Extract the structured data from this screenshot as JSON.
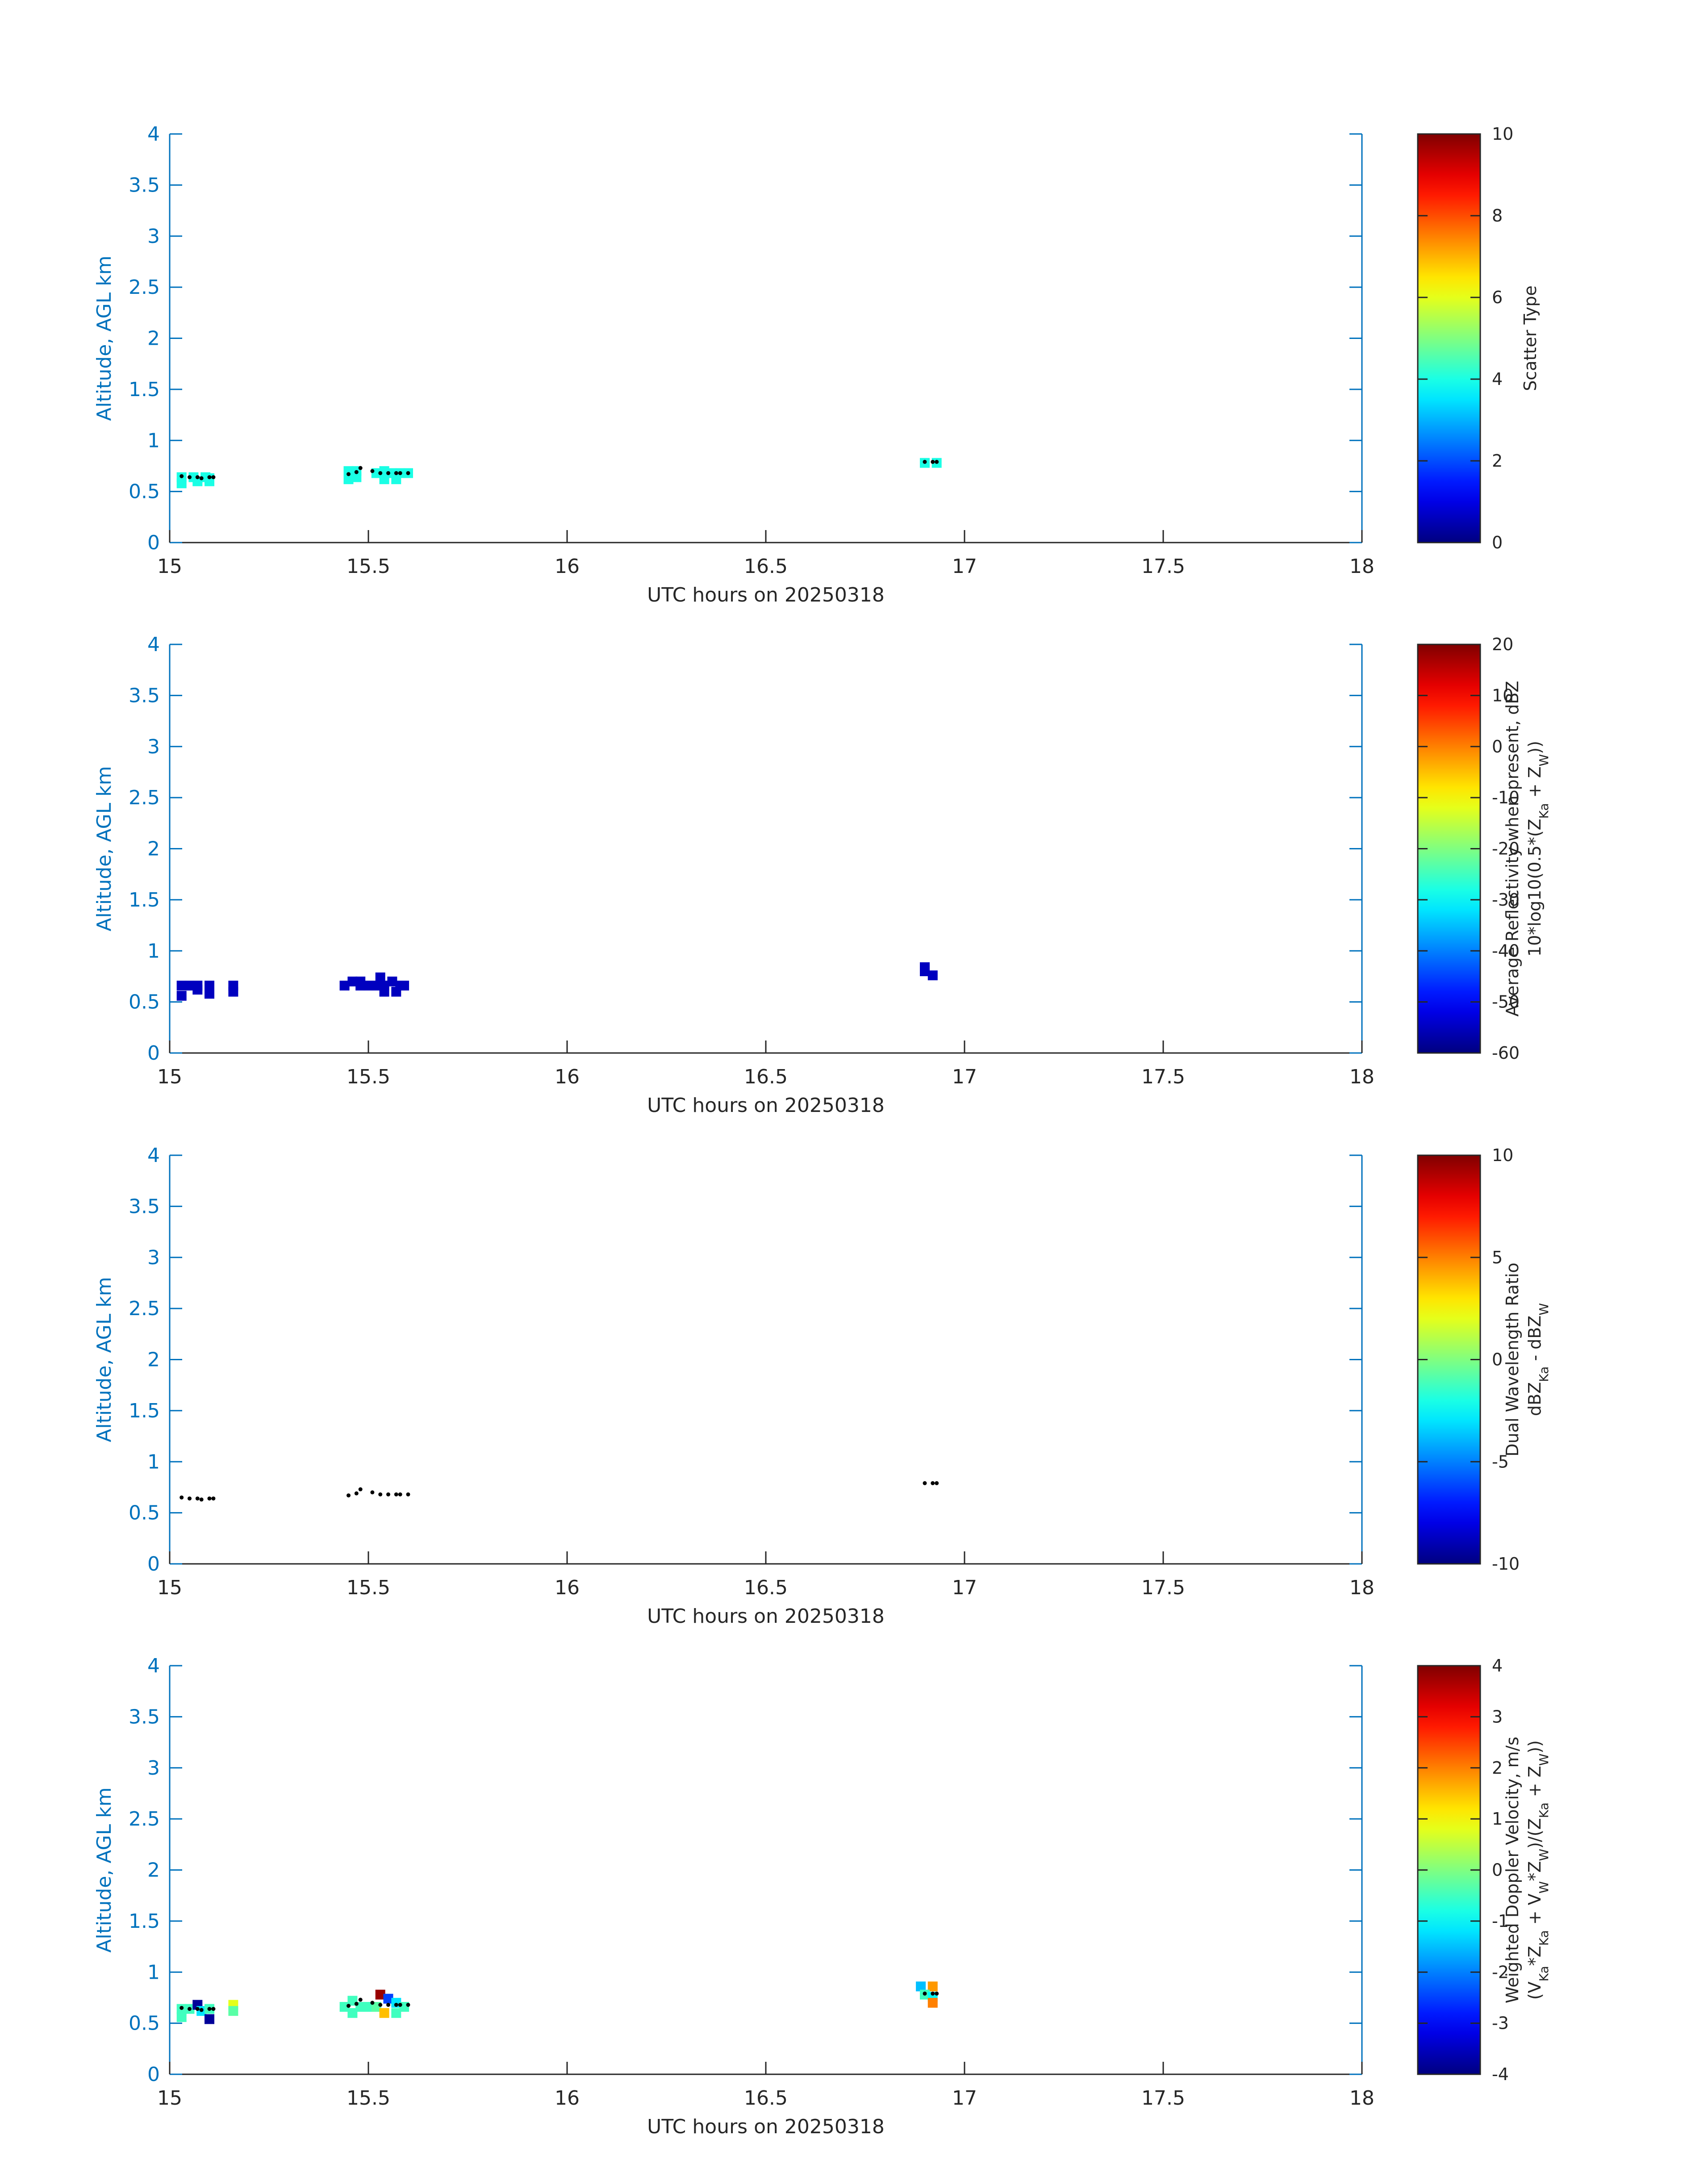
{
  "colors": {
    "axis": "#0072BD",
    "text": "#262626",
    "marker": "#000000",
    "colormap": "jet"
  },
  "chart_data": [
    {
      "type": "heatmap",
      "xlabel": "UTC hours on 20250318",
      "ylabel": "Altitude, AGL km",
      "xlim": [
        15,
        18
      ],
      "ylim": [
        0,
        4
      ],
      "xticks": [
        "15",
        "15.5",
        "16",
        "16.5",
        "17",
        "17.5",
        "18"
      ],
      "yticks": [
        "0",
        "0.5",
        "1",
        "1.5",
        "2",
        "2.5",
        "3",
        "3.5",
        "4"
      ],
      "grid": false,
      "colorbar": {
        "label_lines": [
          {
            "text": "Scatter Type"
          }
        ],
        "ticks": [
          "0",
          "2",
          "4",
          "6",
          "8",
          "10"
        ],
        "clim": [
          0,
          10
        ]
      },
      "cells": [
        [
          15.03,
          0.64,
          4
        ],
        [
          15.06,
          0.64,
          4
        ],
        [
          15.09,
          0.64,
          4
        ],
        [
          15.1,
          0.63,
          4
        ],
        [
          15.03,
          0.58,
          4
        ],
        [
          15.07,
          0.6,
          4
        ],
        [
          15.1,
          0.6,
          4
        ],
        [
          15.45,
          0.7,
          4
        ],
        [
          15.47,
          0.7,
          4
        ],
        [
          15.45,
          0.62,
          4
        ],
        [
          15.47,
          0.64,
          4
        ],
        [
          15.52,
          0.68,
          4
        ],
        [
          15.54,
          0.7,
          4
        ],
        [
          15.56,
          0.68,
          4
        ],
        [
          15.58,
          0.68,
          4
        ],
        [
          15.6,
          0.68,
          4
        ],
        [
          15.54,
          0.62,
          4
        ],
        [
          15.57,
          0.62,
          4
        ],
        [
          16.9,
          0.78,
          4
        ],
        [
          16.93,
          0.78,
          4
        ]
      ],
      "markers": [
        [
          15.03,
          0.65
        ],
        [
          15.05,
          0.64
        ],
        [
          15.07,
          0.64
        ],
        [
          15.08,
          0.63
        ],
        [
          15.1,
          0.64
        ],
        [
          15.11,
          0.64
        ],
        [
          15.45,
          0.67
        ],
        [
          15.47,
          0.69
        ],
        [
          15.48,
          0.73
        ],
        [
          15.51,
          0.7
        ],
        [
          15.53,
          0.68
        ],
        [
          15.55,
          0.68
        ],
        [
          15.57,
          0.68
        ],
        [
          15.58,
          0.68
        ],
        [
          15.6,
          0.68
        ],
        [
          16.9,
          0.79
        ],
        [
          16.92,
          0.79
        ],
        [
          16.93,
          0.79
        ]
      ]
    },
    {
      "type": "heatmap",
      "xlabel": "UTC hours on 20250318",
      "ylabel": "Altitude, AGL km",
      "xlim": [
        15,
        18
      ],
      "ylim": [
        0,
        4
      ],
      "xticks": [
        "15",
        "15.5",
        "16",
        "16.5",
        "17",
        "17.5",
        "18"
      ],
      "yticks": [
        "0",
        "0.5",
        "1",
        "1.5",
        "2",
        "2.5",
        "3",
        "3.5",
        "4"
      ],
      "grid": false,
      "colorbar": {
        "label_lines": [
          {
            "text": "Average Reflectivity when present, dBZ"
          },
          {
            "text": "10*log10(0.5*(Z",
            "sub1": "Ka",
            "mid": " + Z",
            "sub2": "W",
            "tail": "))"
          }
        ],
        "ticks": [
          "-60",
          "-50",
          "-40",
          "-30",
          "-20",
          "-10",
          "0",
          "10",
          "20"
        ],
        "clim": [
          -60,
          20
        ]
      },
      "cells": [
        [
          15.03,
          0.66,
          -55
        ],
        [
          15.05,
          0.66,
          -55
        ],
        [
          15.07,
          0.62,
          -55
        ],
        [
          15.1,
          0.66,
          -55
        ],
        [
          15.1,
          0.58,
          -55
        ],
        [
          15.03,
          0.56,
          -55
        ],
        [
          15.07,
          0.66,
          -55
        ],
        [
          15.16,
          0.66,
          -55
        ],
        [
          15.16,
          0.6,
          -55
        ],
        [
          15.44,
          0.66,
          -55
        ],
        [
          15.46,
          0.7,
          -55
        ],
        [
          15.48,
          0.7,
          -55
        ],
        [
          15.48,
          0.66,
          -55
        ],
        [
          15.5,
          0.66,
          -55
        ],
        [
          15.52,
          0.66,
          -55
        ],
        [
          15.53,
          0.74,
          -55
        ],
        [
          15.54,
          0.66,
          -55
        ],
        [
          15.56,
          0.7,
          -55
        ],
        [
          15.58,
          0.66,
          -55
        ],
        [
          15.54,
          0.6,
          -55
        ],
        [
          15.57,
          0.6,
          -55
        ],
        [
          15.59,
          0.66,
          -55
        ],
        [
          16.9,
          0.8,
          -55
        ],
        [
          16.92,
          0.76,
          -55
        ],
        [
          16.9,
          0.84,
          -55
        ]
      ],
      "markers": []
    },
    {
      "type": "heatmap",
      "xlabel": "UTC hours on 20250318",
      "ylabel": "Altitude, AGL km",
      "xlim": [
        15,
        18
      ],
      "ylim": [
        0,
        4
      ],
      "xticks": [
        "15",
        "15.5",
        "16",
        "16.5",
        "17",
        "17.5",
        "18"
      ],
      "yticks": [
        "0",
        "0.5",
        "1",
        "1.5",
        "2",
        "2.5",
        "3",
        "3.5",
        "4"
      ],
      "grid": false,
      "colorbar": {
        "label_lines": [
          {
            "text": "Dual Wavelength Ratio"
          },
          {
            "text": "dBZ",
            "sub1": "Ka",
            "mid": " - dBZ",
            "sub2": "W",
            "tail": ""
          }
        ],
        "ticks": [
          "-10",
          "-5",
          "0",
          "5",
          "10"
        ],
        "clim": [
          -10,
          10
        ]
      },
      "cells": [],
      "markers": [
        [
          15.03,
          0.65
        ],
        [
          15.05,
          0.64
        ],
        [
          15.07,
          0.64
        ],
        [
          15.08,
          0.63
        ],
        [
          15.1,
          0.64
        ],
        [
          15.11,
          0.64
        ],
        [
          15.45,
          0.67
        ],
        [
          15.47,
          0.69
        ],
        [
          15.48,
          0.73
        ],
        [
          15.51,
          0.7
        ],
        [
          15.53,
          0.68
        ],
        [
          15.55,
          0.68
        ],
        [
          15.57,
          0.68
        ],
        [
          15.58,
          0.68
        ],
        [
          15.6,
          0.68
        ],
        [
          16.9,
          0.79
        ],
        [
          16.92,
          0.79
        ],
        [
          16.93,
          0.79
        ]
      ]
    },
    {
      "type": "heatmap",
      "xlabel": "UTC hours on 20250318",
      "ylabel": "Altitude, AGL km",
      "xlim": [
        15,
        18
      ],
      "ylim": [
        0,
        4
      ],
      "xticks": [
        "15",
        "15.5",
        "16",
        "16.5",
        "17",
        "17.5",
        "18"
      ],
      "yticks": [
        "0",
        "0.5",
        "1",
        "1.5",
        "2",
        "2.5",
        "3",
        "3.5",
        "4"
      ],
      "grid": false,
      "colorbar": {
        "label_lines": [
          {
            "text": "Weighted Doppler Velocity, m/s"
          },
          {
            "text": "(V",
            "sub1": "Ka",
            "mid": "*Z",
            "sub2": "Ka",
            "tail": " + V",
            "sub3": "W",
            "tail2": "*Z",
            "sub4": "W",
            "tail3": ")/(Z",
            "sub5": "Ka",
            "tail4": " + Z",
            "sub6": "W",
            "tail5": "))"
          }
        ],
        "ticks": [
          "-4",
          "-3",
          "-2",
          "-1",
          "0",
          "1",
          "2",
          "3",
          "4"
        ],
        "clim": [
          -4,
          4
        ]
      },
      "cells": [
        [
          15.03,
          0.64,
          -0.5
        ],
        [
          15.05,
          0.64,
          -0.5
        ],
        [
          15.07,
          0.68,
          -3.8
        ],
        [
          15.08,
          0.62,
          -1.2
        ],
        [
          15.1,
          0.64,
          -0.5
        ],
        [
          15.1,
          0.54,
          -3.8
        ],
        [
          15.03,
          0.56,
          -0.5
        ],
        [
          15.16,
          0.68,
          0.8
        ],
        [
          15.16,
          0.62,
          -0.3
        ],
        [
          15.44,
          0.66,
          -0.5
        ],
        [
          15.46,
          0.72,
          -0.5
        ],
        [
          15.48,
          0.66,
          -0.5
        ],
        [
          15.5,
          0.66,
          -0.5
        ],
        [
          15.52,
          0.66,
          -0.3
        ],
        [
          15.53,
          0.78,
          3.8
        ],
        [
          15.55,
          0.74,
          -2.5
        ],
        [
          15.57,
          0.7,
          -1.2
        ],
        [
          15.54,
          0.6,
          1.5
        ],
        [
          15.57,
          0.6,
          -0.5
        ],
        [
          15.59,
          0.66,
          -0.5
        ],
        [
          15.46,
          0.6,
          -0.5
        ],
        [
          16.89,
          0.86,
          -1.5
        ],
        [
          16.92,
          0.86,
          1.8
        ],
        [
          16.9,
          0.78,
          -0.5
        ],
        [
          16.92,
          0.76,
          -1
        ],
        [
          16.92,
          0.7,
          2
        ]
      ],
      "markers": [
        [
          15.03,
          0.65
        ],
        [
          15.05,
          0.64
        ],
        [
          15.07,
          0.64
        ],
        [
          15.08,
          0.63
        ],
        [
          15.1,
          0.64
        ],
        [
          15.11,
          0.64
        ],
        [
          15.45,
          0.67
        ],
        [
          15.47,
          0.69
        ],
        [
          15.48,
          0.73
        ],
        [
          15.51,
          0.7
        ],
        [
          15.53,
          0.68
        ],
        [
          15.55,
          0.68
        ],
        [
          15.57,
          0.68
        ],
        [
          15.58,
          0.68
        ],
        [
          15.6,
          0.68
        ],
        [
          16.9,
          0.79
        ],
        [
          16.92,
          0.79
        ],
        [
          16.93,
          0.79
        ]
      ]
    }
  ]
}
